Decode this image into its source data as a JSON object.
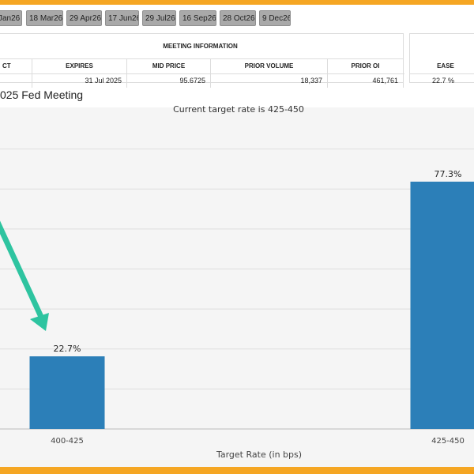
{
  "tabs": [
    "Jan26",
    "18 Mar26",
    "29 Apr26",
    "17 Jun26",
    "29 Jul26",
    "16 Sep26",
    "28 Oct26",
    "9 Dec26"
  ],
  "meeting_info": {
    "title": "MEETING INFORMATION",
    "columns": [
      "CT",
      "EXPIRES",
      "MID PRICE",
      "PRIOR VOLUME",
      "PRIOR OI"
    ],
    "values": [
      "",
      "31 Jul 2025",
      "95.6725",
      "18,337",
      "461,761"
    ]
  },
  "side_table": {
    "columns": [
      "EASE"
    ],
    "values": [
      "22.7 %"
    ]
  },
  "chart_heading": "025 Fed Meeting",
  "chart_data": {
    "type": "bar",
    "title": "Current target rate is 425-450",
    "xlabel": "Target Rate (in bps)",
    "ylabel": "",
    "categories": [
      "400-425",
      "425-450"
    ],
    "values": [
      22.7,
      77.3
    ],
    "value_labels": [
      "22.7%",
      "77.3%"
    ],
    "ylim": [
      0,
      100
    ],
    "grid": true,
    "bar_color": "#2c7fb8"
  },
  "colors": {
    "frame": "#f5a623",
    "arrow": "#2ec4a0",
    "bar": "#2c7fb8"
  }
}
